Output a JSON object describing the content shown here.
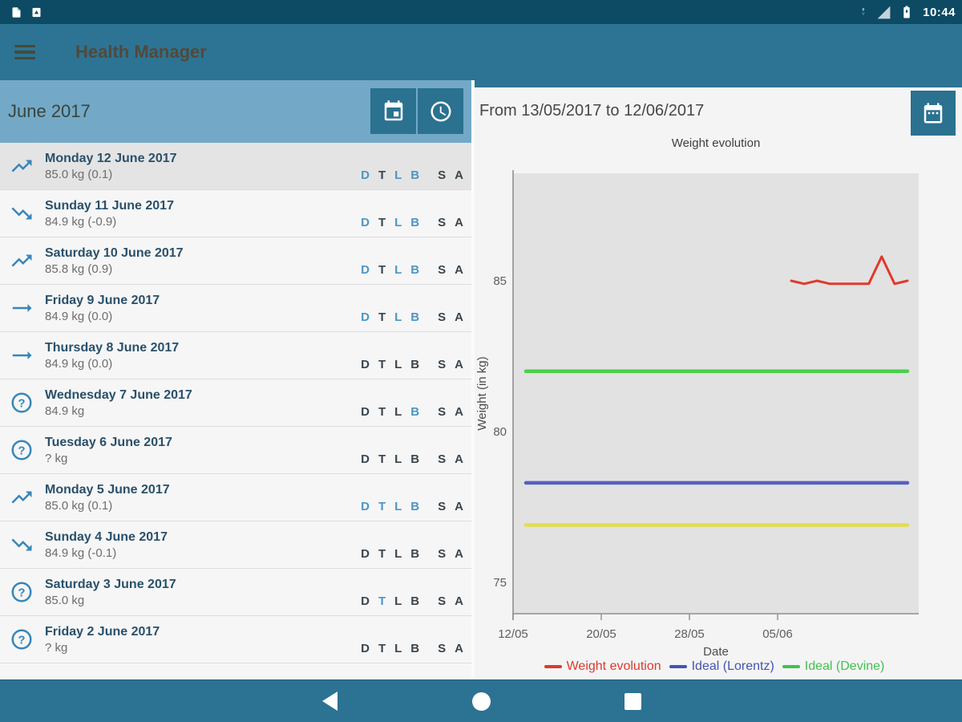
{
  "status_bar": {
    "time": "10:44",
    "notification_icons": [
      "file-icon",
      "app-update-icon"
    ],
    "system_icons": [
      "network-traffic-icon",
      "signal-icon",
      "battery-icon"
    ]
  },
  "app_bar": {
    "title": "Health Manager"
  },
  "left_panel": {
    "header": {
      "title": "June 2017",
      "buttons": [
        "calendar-button",
        "history-button"
      ]
    },
    "entries": [
      {
        "icon": "trend-up",
        "title": "Monday 12 June 2017",
        "subtitle": "85.0 kg (0.1)",
        "selected": true,
        "letters": [
          {
            "c": "D",
            "on": true
          },
          {
            "c": "T",
            "on": false
          },
          {
            "c": "L",
            "on": true
          },
          {
            "c": "B",
            "on": true
          },
          {
            "c": "S",
            "on": false
          },
          {
            "c": "A",
            "on": false
          }
        ]
      },
      {
        "icon": "trend-down",
        "title": "Sunday 11 June 2017",
        "subtitle": "84.9 kg (-0.9)",
        "selected": false,
        "letters": [
          {
            "c": "D",
            "on": true
          },
          {
            "c": "T",
            "on": false
          },
          {
            "c": "L",
            "on": true
          },
          {
            "c": "B",
            "on": true
          },
          {
            "c": "S",
            "on": false
          },
          {
            "c": "A",
            "on": false
          }
        ]
      },
      {
        "icon": "trend-up",
        "title": "Saturday 10 June 2017",
        "subtitle": "85.8 kg (0.9)",
        "selected": false,
        "letters": [
          {
            "c": "D",
            "on": true
          },
          {
            "c": "T",
            "on": false
          },
          {
            "c": "L",
            "on": true
          },
          {
            "c": "B",
            "on": true
          },
          {
            "c": "S",
            "on": false
          },
          {
            "c": "A",
            "on": false
          }
        ]
      },
      {
        "icon": "flat",
        "title": "Friday 9 June 2017",
        "subtitle": "84.9 kg (0.0)",
        "selected": false,
        "letters": [
          {
            "c": "D",
            "on": true
          },
          {
            "c": "T",
            "on": false
          },
          {
            "c": "L",
            "on": true
          },
          {
            "c": "B",
            "on": true
          },
          {
            "c": "S",
            "on": false
          },
          {
            "c": "A",
            "on": false
          }
        ]
      },
      {
        "icon": "flat",
        "title": "Thursday 8 June 2017",
        "subtitle": "84.9 kg (0.0)",
        "selected": false,
        "letters": [
          {
            "c": "D",
            "on": false
          },
          {
            "c": "T",
            "on": false
          },
          {
            "c": "L",
            "on": false
          },
          {
            "c": "B",
            "on": false
          },
          {
            "c": "S",
            "on": false
          },
          {
            "c": "A",
            "on": false
          }
        ]
      },
      {
        "icon": "unknown",
        "title": "Wednesday 7 June 2017",
        "subtitle": "84.9 kg",
        "selected": false,
        "letters": [
          {
            "c": "D",
            "on": false
          },
          {
            "c": "T",
            "on": false
          },
          {
            "c": "L",
            "on": false
          },
          {
            "c": "B",
            "on": true
          },
          {
            "c": "S",
            "on": false
          },
          {
            "c": "A",
            "on": false
          }
        ]
      },
      {
        "icon": "unknown",
        "title": "Tuesday 6 June 2017",
        "subtitle": "? kg",
        "selected": false,
        "letters": [
          {
            "c": "D",
            "on": false
          },
          {
            "c": "T",
            "on": false
          },
          {
            "c": "L",
            "on": false
          },
          {
            "c": "B",
            "on": false
          },
          {
            "c": "S",
            "on": false
          },
          {
            "c": "A",
            "on": false
          }
        ]
      },
      {
        "icon": "trend-up",
        "title": "Monday 5 June 2017",
        "subtitle": "85.0 kg (0.1)",
        "selected": false,
        "letters": [
          {
            "c": "D",
            "on": true
          },
          {
            "c": "T",
            "on": true
          },
          {
            "c": "L",
            "on": true
          },
          {
            "c": "B",
            "on": true
          },
          {
            "c": "S",
            "on": false
          },
          {
            "c": "A",
            "on": false
          }
        ]
      },
      {
        "icon": "trend-down",
        "title": "Sunday 4 June 2017",
        "subtitle": "84.9 kg (-0.1)",
        "selected": false,
        "letters": [
          {
            "c": "D",
            "on": false
          },
          {
            "c": "T",
            "on": false
          },
          {
            "c": "L",
            "on": false
          },
          {
            "c": "B",
            "on": false
          },
          {
            "c": "S",
            "on": false
          },
          {
            "c": "A",
            "on": false
          }
        ]
      },
      {
        "icon": "unknown",
        "title": "Saturday 3 June 2017",
        "subtitle": "85.0 kg",
        "selected": false,
        "letters": [
          {
            "c": "D",
            "on": false
          },
          {
            "c": "T",
            "on": true
          },
          {
            "c": "L",
            "on": false
          },
          {
            "c": "B",
            "on": false
          },
          {
            "c": "S",
            "on": false
          },
          {
            "c": "A",
            "on": false
          }
        ]
      },
      {
        "icon": "unknown",
        "title": "Friday 2 June 2017",
        "subtitle": "? kg",
        "selected": false,
        "letters": [
          {
            "c": "D",
            "on": false
          },
          {
            "c": "T",
            "on": false
          },
          {
            "c": "L",
            "on": false
          },
          {
            "c": "B",
            "on": false
          },
          {
            "c": "S",
            "on": false
          },
          {
            "c": "A",
            "on": false
          }
        ]
      }
    ]
  },
  "right_panel": {
    "header": {
      "range_label": "From 13/05/2017 to 12/06/2017",
      "button": "calendar-button"
    }
  },
  "chart_data": {
    "type": "line",
    "title": "Weight evolution",
    "xlabel": "Date",
    "ylabel": "Weight (in kg)",
    "x_ticks": [
      "12/05",
      "20/05",
      "28/05",
      "05/06"
    ],
    "y_ticks": [
      85,
      80,
      75
    ],
    "ylim": [
      74,
      88.5
    ],
    "plot_bg": "#e2e2e2",
    "grid": false,
    "legend_position": "bottom",
    "series": [
      {
        "name": "Weight evolution",
        "type": "line",
        "color": "#e0392b",
        "x": [
          "03/06",
          "04/06",
          "05/06",
          "06/06",
          "07/06",
          "08/06",
          "09/06",
          "10/06",
          "11/06",
          "12/06"
        ],
        "values": [
          85.0,
          84.9,
          85.0,
          84.9,
          84.9,
          84.9,
          84.9,
          85.8,
          84.9,
          85.0
        ]
      },
      {
        "name": "Ideal (Devine)",
        "type": "hline",
        "color": "#4ad04a",
        "value": 82.0
      },
      {
        "name": "Ideal (Lorentz)",
        "type": "hline",
        "color": "#5560c1",
        "value": 78.3
      },
      {
        "name": "",
        "type": "hline",
        "color": "#e3dd4e",
        "value": 76.9
      }
    ],
    "legend": [
      {
        "label": "Weight evolution",
        "color": "#da3b2f"
      },
      {
        "label": "Ideal (Lorentz)",
        "color": "#4453b4"
      },
      {
        "label": "Ideal (Devine)",
        "color": "#42c24d"
      }
    ]
  },
  "nav_bar": {
    "buttons": [
      "back",
      "home",
      "recents"
    ]
  }
}
